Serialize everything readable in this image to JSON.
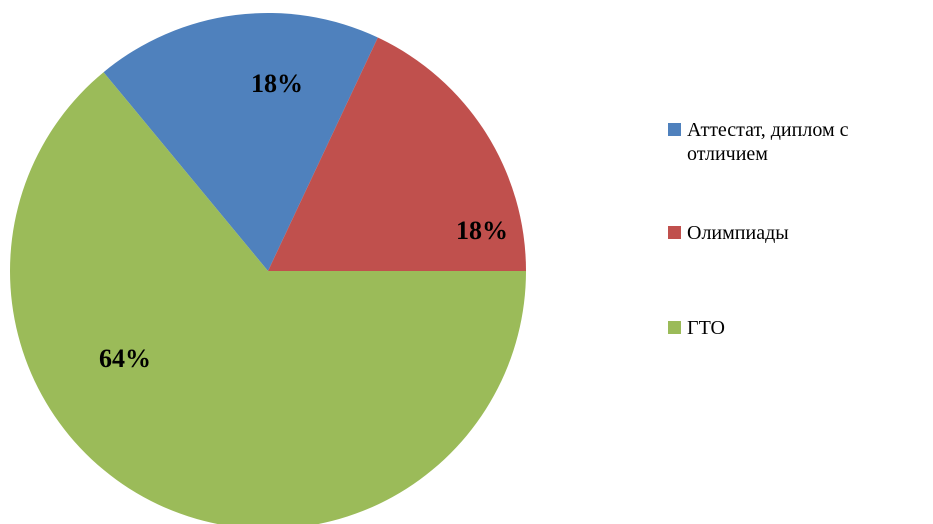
{
  "chart_data": {
    "type": "pie",
    "categories": [
      "Аттестат, диплом с отличием",
      "Олимпиады",
      "ГТО"
    ],
    "values": [
      18,
      18,
      64
    ],
    "value_labels": [
      "18%",
      "18%",
      "64%"
    ],
    "colors": [
      "#4f81bd",
      "#c0504d",
      "#9bbb59"
    ],
    "legend": "right"
  }
}
